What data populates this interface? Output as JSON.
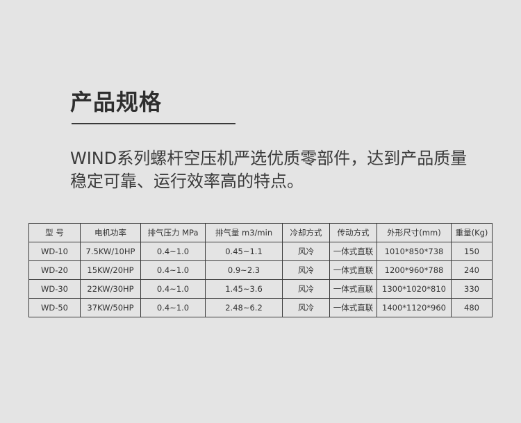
{
  "title": "产品规格",
  "description": "WIND系列螺杆空压机严选优质零部件，达到产品质量稳定可靠、运行效率高的特点。",
  "table": {
    "headers": [
      "型  号",
      "电机功率",
      "排气压力 MPa",
      "排气量 m3/min",
      "冷却方式",
      "传动方式",
      "外形尺寸(mm)",
      "重量(Kg)"
    ],
    "rows": [
      [
        "WD-10",
        "7.5KW/10HP",
        "0.4~1.0",
        "0.45~1.1",
        "风冷",
        "一体式直联",
        "1010*850*738",
        "150"
      ],
      [
        "WD-20",
        "15KW/20HP",
        "0.4~1.0",
        "0.9~2.3",
        "风冷",
        "一体式直联",
        "1200*960*788",
        "240"
      ],
      [
        "WD-30",
        "22KW/30HP",
        "0.4~1.0",
        "1.45~3.6",
        "风冷",
        "一体式直联",
        "1300*1020*810",
        "330"
      ],
      [
        "WD-50",
        "37KW/50HP",
        "0.4~1.0",
        "2.48~6.2",
        "风冷",
        "一体式直联",
        "1400*1120*960",
        "480"
      ]
    ]
  }
}
